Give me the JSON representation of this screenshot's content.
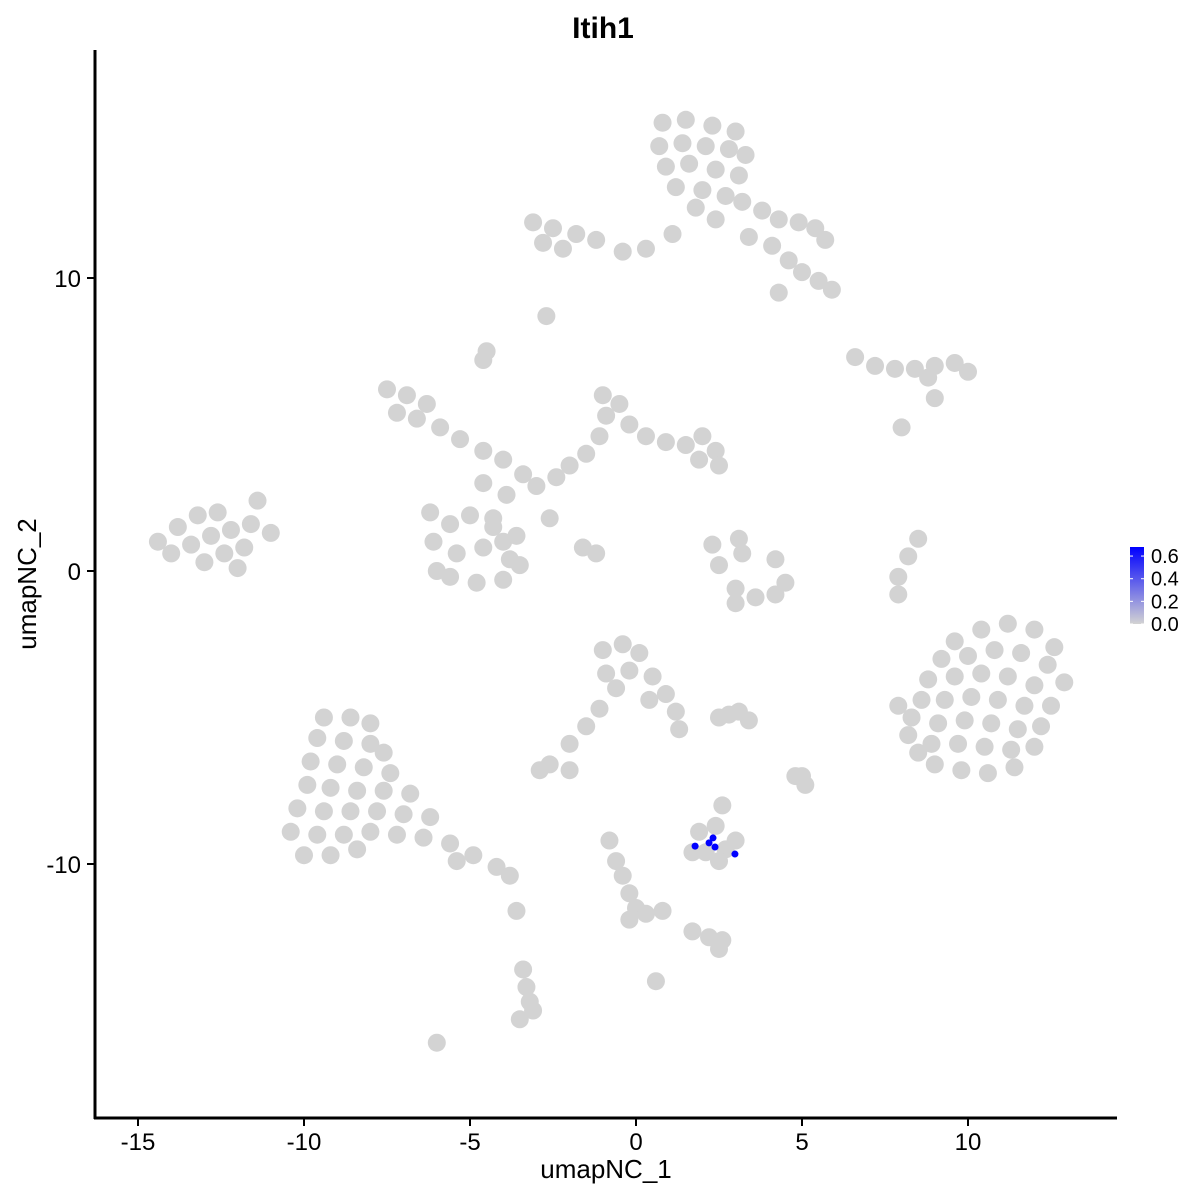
{
  "chart_data": {
    "type": "scatter",
    "title": "Itih1",
    "xlabel": "umapNC_1",
    "ylabel": "umapNC_2",
    "xlim": [
      -16.3,
      14.5
    ],
    "ylim": [
      -18.7,
      17.8
    ],
    "x_ticks": [
      -15,
      -10,
      -5,
      0,
      5,
      10
    ],
    "y_ticks": [
      -10,
      0,
      10
    ],
    "x_tick_labels": [
      "-15",
      "-10",
      "-5",
      "0",
      "5",
      "10"
    ],
    "y_tick_labels": [
      "-10",
      "0",
      "10"
    ],
    "grid": false,
    "legend": {
      "placement": "right",
      "min": 0.0,
      "max": 0.68,
      "ticks": [
        0.0,
        0.2,
        0.4,
        0.6
      ],
      "tick_labels": [
        "0.0",
        "0.2",
        "0.4",
        "0.6"
      ],
      "low_color": "#d3d3d3",
      "high_color": "#0000ff"
    },
    "background_points_value": 0.0,
    "background_points": [
      [
        0.8,
        15.3
      ],
      [
        1.5,
        15.4
      ],
      [
        2.3,
        15.2
      ],
      [
        3.0,
        15.0
      ],
      [
        0.7,
        14.5
      ],
      [
        1.4,
        14.6
      ],
      [
        2.1,
        14.5
      ],
      [
        2.8,
        14.4
      ],
      [
        3.3,
        14.2
      ],
      [
        0.9,
        13.8
      ],
      [
        1.6,
        13.9
      ],
      [
        2.4,
        13.7
      ],
      [
        3.1,
        13.5
      ],
      [
        1.2,
        13.1
      ],
      [
        2.0,
        13.0
      ],
      [
        2.7,
        12.8
      ],
      [
        1.8,
        12.4
      ],
      [
        2.4,
        12.0
      ],
      [
        3.2,
        12.6
      ],
      [
        3.8,
        12.3
      ],
      [
        4.3,
        12.0
      ],
      [
        4.9,
        11.9
      ],
      [
        5.4,
        11.7
      ],
      [
        5.7,
        11.3
      ],
      [
        3.4,
        11.4
      ],
      [
        4.1,
        11.1
      ],
      [
        4.6,
        10.6
      ],
      [
        5.0,
        10.2
      ],
      [
        5.5,
        9.9
      ],
      [
        5.9,
        9.6
      ],
      [
        4.3,
        9.5
      ],
      [
        1.1,
        11.5
      ],
      [
        0.3,
        11.0
      ],
      [
        -0.4,
        10.9
      ],
      [
        -3.1,
        11.9
      ],
      [
        -2.5,
        11.7
      ],
      [
        -1.8,
        11.5
      ],
      [
        -1.2,
        11.3
      ],
      [
        -2.8,
        11.2
      ],
      [
        -2.2,
        11.0
      ],
      [
        -2.7,
        8.7
      ],
      [
        -4.5,
        7.5
      ],
      [
        -4.6,
        7.2
      ],
      [
        6.6,
        7.3
      ],
      [
        7.2,
        7.0
      ],
      [
        7.8,
        6.9
      ],
      [
        8.4,
        6.9
      ],
      [
        9.0,
        7.0
      ],
      [
        9.6,
        7.1
      ],
      [
        10.0,
        6.8
      ],
      [
        8.8,
        6.6
      ],
      [
        9.0,
        5.9
      ],
      [
        8.0,
        4.9
      ],
      [
        -7.5,
        6.2
      ],
      [
        -6.9,
        6.0
      ],
      [
        -6.3,
        5.7
      ],
      [
        -7.2,
        5.4
      ],
      [
        -6.6,
        5.2
      ],
      [
        -5.9,
        4.9
      ],
      [
        -5.3,
        4.5
      ],
      [
        -4.6,
        4.1
      ],
      [
        -4.0,
        3.8
      ],
      [
        -3.4,
        3.3
      ],
      [
        -3.9,
        2.6
      ],
      [
        -3.0,
        2.9
      ],
      [
        -2.4,
        3.2
      ],
      [
        -2.0,
        3.6
      ],
      [
        -1.5,
        4.0
      ],
      [
        -1.1,
        4.6
      ],
      [
        -0.9,
        5.3
      ],
      [
        -1.0,
        6.0
      ],
      [
        -0.5,
        5.7
      ],
      [
        -0.2,
        5.0
      ],
      [
        0.3,
        4.6
      ],
      [
        0.9,
        4.4
      ],
      [
        1.5,
        4.3
      ],
      [
        2.0,
        4.6
      ],
      [
        2.4,
        4.1
      ],
      [
        2.5,
        3.6
      ],
      [
        1.9,
        3.8
      ],
      [
        -4.3,
        1.8
      ],
      [
        -4.0,
        1.0
      ],
      [
        -3.5,
        0.2
      ],
      [
        -2.6,
        1.8
      ],
      [
        -1.6,
        0.8
      ],
      [
        -1.2,
        0.6
      ],
      [
        -4.6,
        3.0
      ],
      [
        -6.2,
        2.0
      ],
      [
        -5.6,
        1.6
      ],
      [
        -5.0,
        1.9
      ],
      [
        -4.3,
        1.5
      ],
      [
        -3.6,
        1.2
      ],
      [
        -6.1,
        1.0
      ],
      [
        -5.4,
        0.6
      ],
      [
        -4.6,
        0.8
      ],
      [
        -3.8,
        0.4
      ],
      [
        -5.6,
        -0.2
      ],
      [
        -4.8,
        -0.4
      ],
      [
        -4.0,
        -0.3
      ],
      [
        -6.0,
        0.0
      ],
      [
        -14.4,
        1.0
      ],
      [
        -13.8,
        1.5
      ],
      [
        -13.2,
        1.9
      ],
      [
        -12.6,
        2.0
      ],
      [
        -14.0,
        0.6
      ],
      [
        -13.4,
        0.9
      ],
      [
        -12.8,
        1.2
      ],
      [
        -12.2,
        1.4
      ],
      [
        -13.0,
        0.3
      ],
      [
        -12.4,
        0.6
      ],
      [
        -11.6,
        1.6
      ],
      [
        -11.0,
        1.3
      ],
      [
        -11.8,
        0.8
      ],
      [
        -12.0,
        0.1
      ],
      [
        -11.4,
        2.4
      ],
      [
        2.3,
        0.9
      ],
      [
        2.5,
        0.2
      ],
      [
        3.0,
        -0.6
      ],
      [
        3.6,
        -0.9
      ],
      [
        4.2,
        -0.8
      ],
      [
        4.5,
        -0.4
      ],
      [
        4.2,
        0.4
      ],
      [
        3.2,
        0.6
      ],
      [
        3.1,
        1.1
      ],
      [
        3.0,
        -1.1
      ],
      [
        8.5,
        1.1
      ],
      [
        8.2,
        0.5
      ],
      [
        7.9,
        -0.2
      ],
      [
        7.9,
        -0.8
      ],
      [
        9.6,
        -2.4
      ],
      [
        10.4,
        -2.0
      ],
      [
        11.2,
        -1.8
      ],
      [
        12.0,
        -2.0
      ],
      [
        12.6,
        -2.6
      ],
      [
        9.2,
        -3.0
      ],
      [
        10.0,
        -2.9
      ],
      [
        10.8,
        -2.7
      ],
      [
        11.6,
        -2.8
      ],
      [
        12.4,
        -3.2
      ],
      [
        12.9,
        -3.8
      ],
      [
        8.8,
        -3.7
      ],
      [
        9.6,
        -3.6
      ],
      [
        10.4,
        -3.5
      ],
      [
        11.2,
        -3.6
      ],
      [
        12.0,
        -3.9
      ],
      [
        8.6,
        -4.4
      ],
      [
        9.3,
        -4.4
      ],
      [
        10.1,
        -4.3
      ],
      [
        10.9,
        -4.4
      ],
      [
        11.7,
        -4.6
      ],
      [
        12.5,
        -4.6
      ],
      [
        8.3,
        -5.0
      ],
      [
        9.1,
        -5.2
      ],
      [
        9.9,
        -5.1
      ],
      [
        10.7,
        -5.2
      ],
      [
        11.5,
        -5.4
      ],
      [
        12.2,
        -5.3
      ],
      [
        8.9,
        -5.9
      ],
      [
        9.7,
        -5.9
      ],
      [
        10.5,
        -6.0
      ],
      [
        11.3,
        -6.1
      ],
      [
        12.0,
        -6.0
      ],
      [
        9.0,
        -6.6
      ],
      [
        9.8,
        -6.8
      ],
      [
        10.6,
        -6.9
      ],
      [
        11.4,
        -6.7
      ],
      [
        8.5,
        -6.2
      ],
      [
        7.9,
        -4.6
      ],
      [
        8.2,
        -5.6
      ],
      [
        -1.0,
        -2.7
      ],
      [
        -0.4,
        -2.5
      ],
      [
        0.1,
        -2.8
      ],
      [
        -0.9,
        -3.5
      ],
      [
        -0.2,
        -3.4
      ],
      [
        0.5,
        -3.6
      ],
      [
        0.9,
        -4.2
      ],
      [
        1.2,
        -4.8
      ],
      [
        1.3,
        -5.4
      ],
      [
        0.4,
        -4.4
      ],
      [
        -0.6,
        -4.0
      ],
      [
        -1.1,
        -4.7
      ],
      [
        -1.5,
        -5.3
      ],
      [
        -2.0,
        -5.9
      ],
      [
        -2.6,
        -6.6
      ],
      [
        -2.0,
        -6.8
      ],
      [
        -2.9,
        -6.8
      ],
      [
        2.8,
        -4.9
      ],
      [
        3.1,
        -4.8
      ],
      [
        2.5,
        -5.0
      ],
      [
        -9.4,
        -5.0
      ],
      [
        -8.6,
        -5.0
      ],
      [
        -8.0,
        -5.2
      ],
      [
        -9.6,
        -5.7
      ],
      [
        -8.8,
        -5.8
      ],
      [
        -8.0,
        -5.9
      ],
      [
        -7.6,
        -6.2
      ],
      [
        -9.8,
        -6.5
      ],
      [
        -9.0,
        -6.6
      ],
      [
        -8.2,
        -6.7
      ],
      [
        -7.4,
        -6.9
      ],
      [
        -9.9,
        -7.3
      ],
      [
        -9.2,
        -7.4
      ],
      [
        -8.4,
        -7.5
      ],
      [
        -7.6,
        -7.5
      ],
      [
        -6.8,
        -7.6
      ],
      [
        -10.2,
        -8.1
      ],
      [
        -9.4,
        -8.2
      ],
      [
        -8.6,
        -8.2
      ],
      [
        -7.8,
        -8.2
      ],
      [
        -7.0,
        -8.3
      ],
      [
        -6.2,
        -8.4
      ],
      [
        -10.4,
        -8.9
      ],
      [
        -9.6,
        -9.0
      ],
      [
        -8.8,
        -9.0
      ],
      [
        -8.0,
        -8.9
      ],
      [
        -7.2,
        -9.0
      ],
      [
        -6.4,
        -9.1
      ],
      [
        -5.6,
        -9.3
      ],
      [
        -10.0,
        -9.7
      ],
      [
        -9.2,
        -9.7
      ],
      [
        -8.4,
        -9.5
      ],
      [
        -4.9,
        -9.7
      ],
      [
        -4.2,
        -10.1
      ],
      [
        -3.8,
        -10.4
      ],
      [
        -5.4,
        -9.9
      ],
      [
        1.9,
        -8.9
      ],
      [
        2.4,
        -8.7
      ],
      [
        2.6,
        -8.0
      ],
      [
        3.0,
        -9.2
      ],
      [
        2.7,
        -9.5
      ],
      [
        2.1,
        -9.6
      ],
      [
        1.7,
        -9.6
      ],
      [
        2.5,
        -9.9
      ],
      [
        -0.8,
        -9.2
      ],
      [
        -0.6,
        -9.9
      ],
      [
        -0.4,
        -10.4
      ],
      [
        -0.2,
        -11.0
      ],
      [
        0.0,
        -11.5
      ],
      [
        -0.2,
        -11.9
      ],
      [
        0.3,
        -11.7
      ],
      [
        0.8,
        -11.6
      ],
      [
        1.7,
        -12.3
      ],
      [
        2.2,
        -12.5
      ],
      [
        2.6,
        -12.6
      ],
      [
        2.5,
        -12.9
      ],
      [
        -3.4,
        -13.6
      ],
      [
        -3.3,
        -14.2
      ],
      [
        -3.2,
        -14.7
      ],
      [
        -3.5,
        -15.3
      ],
      [
        -3.1,
        -15.0
      ],
      [
        -6.0,
        -16.1
      ],
      [
        0.6,
        -14.0
      ],
      [
        5.1,
        -7.3
      ],
      [
        5.0,
        -7.0
      ],
      [
        4.8,
        -7.0
      ],
      [
        3.4,
        -5.1
      ],
      [
        -3.6,
        -11.6
      ]
    ],
    "expressing_points": [
      {
        "x": 1.78,
        "y": -9.39,
        "value": 0.68
      },
      {
        "x": 2.32,
        "y": -9.11,
        "value": 0.68
      },
      {
        "x": 2.2,
        "y": -9.28,
        "value": 0.68
      },
      {
        "x": 2.38,
        "y": -9.42,
        "value": 0.68
      },
      {
        "x": 2.98,
        "y": -9.66,
        "value": 0.68
      }
    ]
  }
}
